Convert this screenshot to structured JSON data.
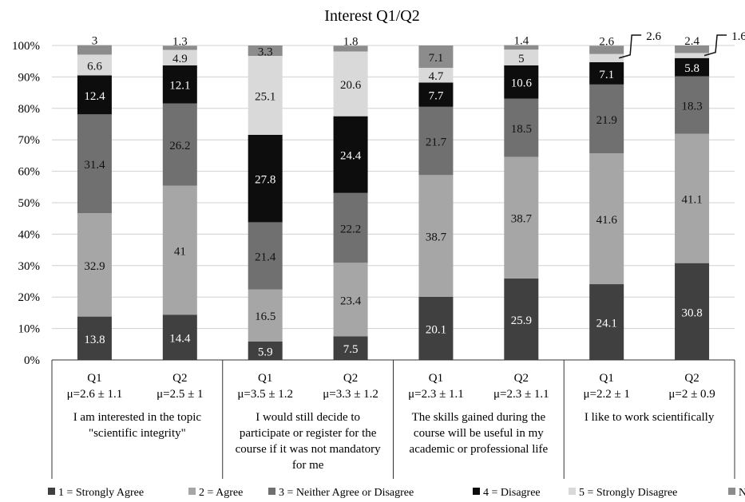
{
  "chart_data": {
    "type": "bar",
    "stacked": true,
    "title": "Interest Q1/Q2",
    "y_ticks": [
      "0%",
      "10%",
      "20%",
      "30%",
      "40%",
      "50%",
      "60%",
      "70%",
      "80%",
      "90%",
      "100%"
    ],
    "ylim": [
      0,
      100
    ],
    "grid": true,
    "legend_position": "bottom",
    "bars": [
      {
        "label": "Q1",
        "stat": "μ=2.6 ± 1.1",
        "values": [
          13.8,
          32.9,
          31.4,
          12.4,
          6.6,
          3
        ]
      },
      {
        "label": "Q2",
        "stat": "μ=2.5 ± 1",
        "values": [
          14.4,
          41,
          26.2,
          12.1,
          4.9,
          1.3
        ]
      },
      {
        "label": "Q1",
        "stat": "μ=3.5 ± 1.2",
        "values": [
          5.9,
          16.5,
          21.4,
          27.8,
          25.1,
          3.3
        ]
      },
      {
        "label": "Q2",
        "stat": "μ=3.3 ± 1.2",
        "values": [
          7.5,
          23.4,
          22.2,
          24.4,
          20.6,
          1.8
        ]
      },
      {
        "label": "Q1",
        "stat": "μ=2.3 ± 1.1",
        "values": [
          20.1,
          38.7,
          21.7,
          7.7,
          4.7,
          7.1
        ]
      },
      {
        "label": "Q2",
        "stat": "μ=2.3 ± 1.1",
        "values": [
          25.9,
          38.7,
          18.5,
          10.6,
          5,
          1.4
        ]
      },
      {
        "label": "Q1",
        "stat": "μ=2.2 ± 1",
        "values": [
          24.1,
          41.6,
          21.9,
          7.1,
          2.6,
          2.6
        ]
      },
      {
        "label": "Q2",
        "stat": "μ=2 ± 0.9",
        "values": [
          30.8,
          41.1,
          18.3,
          5.8,
          1.6,
          2.4
        ]
      }
    ],
    "groups": [
      {
        "lines": [
          "I am interested in the topic",
          "\"scientific integrity\""
        ]
      },
      {
        "lines": [
          "I would still decide to",
          "participate or register for the",
          "course if it was not mandatory",
          "for me"
        ]
      },
      {
        "lines": [
          "The skills gained during the",
          "course will be useful in my",
          "academic or professional life"
        ]
      },
      {
        "lines": [
          "I like to work scientifically"
        ]
      }
    ],
    "series": [
      {
        "name": "1 = Strongly Agree",
        "color": "#404040",
        "text_color": "#ffffff"
      },
      {
        "name": "2 = Agree",
        "color": "#a6a6a6",
        "text_color": "#111111"
      },
      {
        "name": "3 = Neither Agree or Disagree",
        "color": "#707070",
        "text_color": "#111111"
      },
      {
        "name": "4 = Disagree",
        "color": "#0d0d0d",
        "text_color": "#ffffff"
      },
      {
        "name": "5 = Strongly Disagree",
        "color": "#d9d9d9",
        "text_color": "#111111"
      },
      {
        "name": "No Reply",
        "color": "#8c8c8c",
        "text_color": "#111111"
      }
    ],
    "callouts": [
      {
        "bar": 6,
        "segment": 4,
        "text": "2.6"
      },
      {
        "bar": 7,
        "segment": 4,
        "text": "1.6"
      }
    ]
  }
}
